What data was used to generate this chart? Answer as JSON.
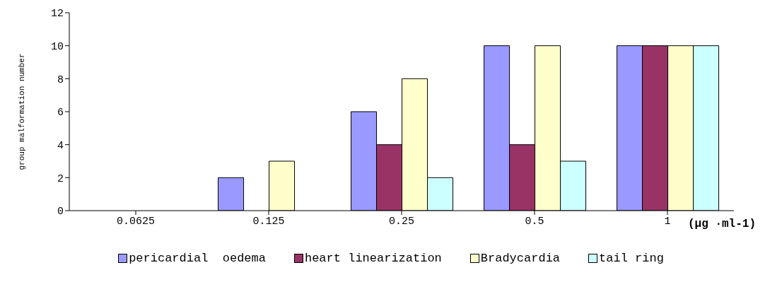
{
  "chart_data": {
    "type": "bar",
    "xlabel": "(μg ·ml-1)",
    "ylabel": "group malformation number",
    "categories": [
      "0.0625",
      "0.125",
      "0.25",
      "0.5",
      "1"
    ],
    "series": [
      {
        "name": "pericardial  oedema",
        "color": "#9999ff",
        "values": [
          0,
          2,
          6,
          10,
          10
        ]
      },
      {
        "name": "heart linearization",
        "color": "#993366",
        "values": [
          0,
          0,
          4,
          4,
          10
        ]
      },
      {
        "name": "Bradycardia",
        "color": "#ffffcc",
        "values": [
          0,
          3,
          8,
          10,
          10
        ]
      },
      {
        "name": "tail ring",
        "color": "#ccffff",
        "values": [
          0,
          0,
          2,
          3,
          10
        ]
      }
    ],
    "ylim": [
      0,
      12
    ],
    "yticks": [
      0,
      2,
      4,
      6,
      8,
      10,
      12
    ],
    "grid": false,
    "legend": "bottom"
  }
}
